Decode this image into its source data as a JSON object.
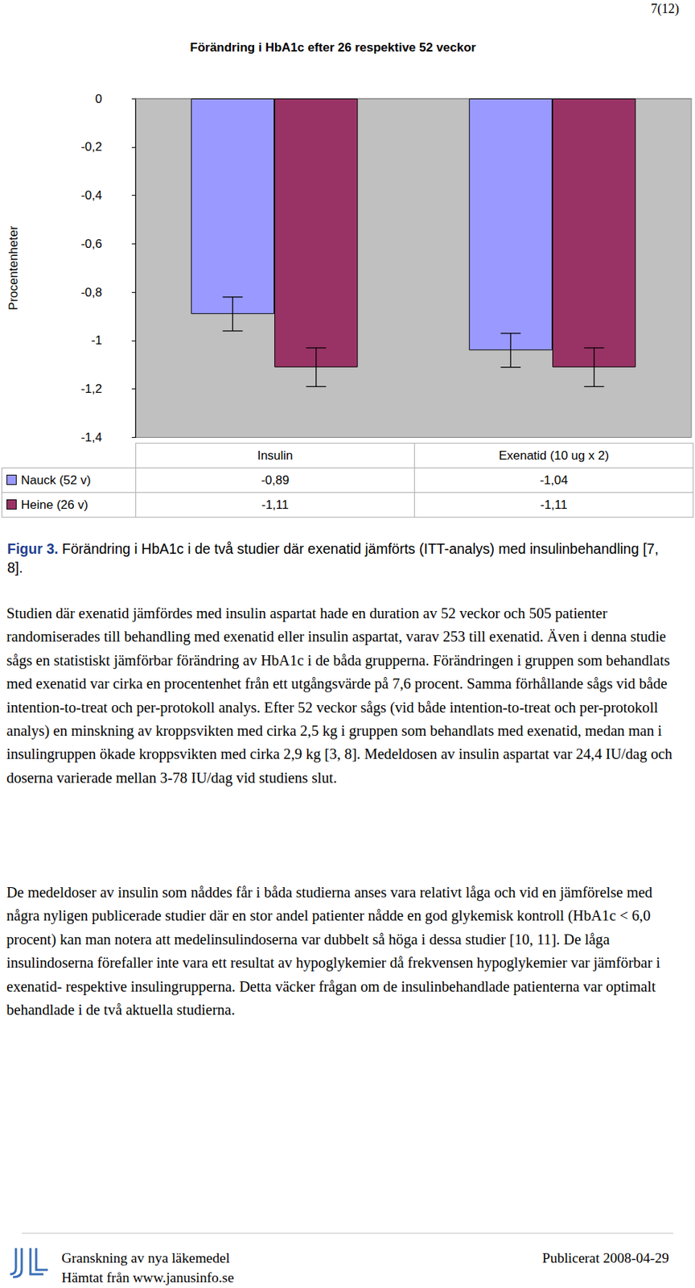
{
  "page": {
    "number": "7(12)"
  },
  "chart_data": {
    "type": "bar",
    "title": "Förändring i HbA1c efter 26 respektive 52 veckor",
    "y_label": "Procentenheter",
    "categories": [
      "Insulin",
      "Exenatid (10 ug x 2)"
    ],
    "series": [
      {
        "name": "Nauck (52 v)",
        "color": "#9999ff",
        "values": [
          -0.89,
          -1.04
        ],
        "value_labels": [
          "-0,89",
          "-1,04"
        ],
        "errors": [
          0.07,
          0.07
        ]
      },
      {
        "name": "Heine (26 v)",
        "color": "#993366",
        "values": [
          -1.11,
          -1.11
        ],
        "value_labels": [
          "-1,11",
          "-1,11"
        ],
        "errors": [
          0.08,
          0.08
        ]
      }
    ],
    "ylim": [
      -1.4,
      0
    ],
    "yticks": [
      {
        "value": -1.4,
        "label": "-1,4"
      },
      {
        "value": -1.2,
        "label": "-1,2"
      },
      -1,
      {
        "value": -0.8,
        "label": "-0,8"
      },
      {
        "value": -0.6,
        "label": "-0,6"
      },
      {
        "value": -0.4,
        "label": "-0,4"
      },
      {
        "value": -0.2,
        "label": "-0,2"
      },
      0
    ],
    "grid": false
  },
  "caption": {
    "label": "Figur 3.",
    "text": "Förändring i HbA1c i de två studier där exenatid jämförts (ITT-analys) med insulinbehandling [7, 8]."
  },
  "body": [
    "Studien där exenatid jämfördes med insulin aspartat hade en duration av 52 veckor och 505 patienter randomiserades till behandling med exenatid eller insulin aspartat, varav 253 till exenatid. Även i denna studie sågs en statistiskt jämförbar förändring av HbA1c i de båda grupperna. Förändringen i gruppen som behandlats med exenatid var cirka en procentenhet från ett utgångsvärde på 7,6 procent. Samma förhållande sågs vid både intention-to-treat och per-protokoll analys. Efter 52 veckor sågs (vid både intention-to-treat och per-protokoll analys) en minskning av kroppsvikten med cirka 2,5 kg i gruppen som behandlats med exenatid, medan man i insulingruppen ökade kroppsvikten med cirka 2,9 kg [3, 8]. Medeldosen av insulin aspartat var 24,4 IU/dag och doserna varierade mellan 3-78 IU/dag vid studiens slut.",
    "De medeldoser av insulin som nåddes får i båda studierna anses vara relativt låga och vid en jämförelse med några nyligen publicerade studier där en stor andel patienter nådde en god glykemisk kontroll (HbA1c < 6,0 procent) kan man notera att medelinsulindoserna var dubbelt så höga i dessa studier [10, 11]. De låga insulindoserna förefaller inte vara ett resultat av hypoglykemier då frekvensen hypoglykemier var jämförbar i exenatid- respektive insulingrupperna. Detta väcker frågan om de insulinbehandlade patienterna var optimalt behandlade i de två aktuella studierna."
  ],
  "footer": {
    "left": [
      "Granskning av nya läkemedel",
      "Hämtat från www.janusinfo.se"
    ],
    "right": "Publicerat 2008-04-29"
  }
}
